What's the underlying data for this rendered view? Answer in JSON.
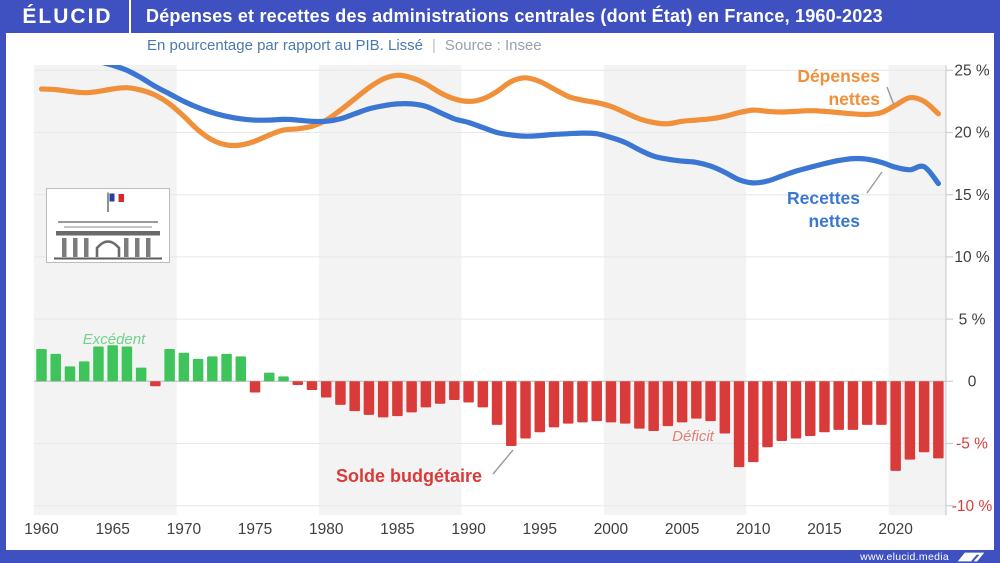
{
  "header": {
    "logo": "ÉLUCID",
    "title": "Dépenses et recettes des administrations centrales (dont État) en France, 1960-2023"
  },
  "subtitle": {
    "text": "En pourcentage par rapport au PIB. Lissé",
    "separator": "|",
    "source": "Source : Insee"
  },
  "footer": {
    "url": "www.elucid.media"
  },
  "colors": {
    "frame_blue": "#3F51C1",
    "depenses_orange": "#F0903A",
    "recettes_blue": "#3B76D3",
    "excedent_green": "#3FC45B",
    "deficit_red": "#D93B3B",
    "axis_text": "#3C4043",
    "negative_tick_text": "#D93B3B",
    "stripe_gray": "#F3F3F3",
    "excedent_label": "#72D28C",
    "deficit_label": "#DF8078"
  },
  "chart_data": {
    "type": "combo",
    "title": "Dépenses et recettes des administrations centrales (dont État) en France, 1960-2023",
    "subtitle": "En pourcentage par rapport au PIB. Lissé",
    "source": "Source : Insee",
    "unit": "% du PIB",
    "xlabel": "",
    "ylabel": "",
    "ylim": [
      -10.7,
      25.4
    ],
    "grid": "horizontal",
    "background_stripes": "alternating decades",
    "legend_position": "annotated-on-chart",
    "x": [
      1960,
      1961,
      1962,
      1963,
      1964,
      1965,
      1966,
      1967,
      1968,
      1969,
      1970,
      1971,
      1972,
      1973,
      1974,
      1975,
      1976,
      1977,
      1978,
      1979,
      1980,
      1981,
      1982,
      1983,
      1984,
      1985,
      1986,
      1987,
      1988,
      1989,
      1990,
      1991,
      1992,
      1993,
      1994,
      1995,
      1996,
      1997,
      1998,
      1999,
      2000,
      2001,
      2002,
      2003,
      2004,
      2005,
      2006,
      2007,
      2008,
      2009,
      2010,
      2011,
      2012,
      2013,
      2014,
      2015,
      2016,
      2017,
      2018,
      2019,
      2020,
      2021,
      2022,
      2023
    ],
    "series": [
      {
        "name": "Dépenses nettes",
        "type": "line",
        "color": "#F0903A",
        "values": [
          23.5,
          23.45,
          23.3,
          23.2,
          23.3,
          23.5,
          23.6,
          23.4,
          23.0,
          22.3,
          21.3,
          20.2,
          19.4,
          19.0,
          19.0,
          19.3,
          19.8,
          20.2,
          20.3,
          20.5,
          21.0,
          21.8,
          22.7,
          23.6,
          24.3,
          24.6,
          24.4,
          23.9,
          23.2,
          22.7,
          22.5,
          22.7,
          23.3,
          24.1,
          24.4,
          24.1,
          23.5,
          22.9,
          22.6,
          22.4,
          22.1,
          21.6,
          21.1,
          20.8,
          20.7,
          20.9,
          21.0,
          21.1,
          21.3,
          21.6,
          21.8,
          21.7,
          21.65,
          21.7,
          21.75,
          21.7,
          21.6,
          21.5,
          21.45,
          21.6,
          22.2,
          22.8,
          22.5,
          21.5
        ]
      },
      {
        "name": "Recettes nettes",
        "type": "line",
        "color": "#3B76D3",
        "values": [
          26.6,
          26.4,
          26.1,
          25.9,
          25.7,
          25.4,
          25.0,
          24.4,
          23.7,
          23.1,
          22.5,
          22.0,
          21.6,
          21.3,
          21.1,
          21.0,
          21.0,
          21.05,
          21.0,
          20.9,
          20.9,
          21.1,
          21.5,
          21.9,
          22.15,
          22.3,
          22.3,
          22.1,
          21.6,
          21.1,
          20.8,
          20.4,
          20.0,
          19.8,
          19.7,
          19.75,
          19.85,
          19.9,
          19.95,
          19.9,
          19.6,
          19.2,
          18.6,
          18.1,
          17.85,
          17.7,
          17.6,
          17.3,
          16.8,
          16.2,
          15.95,
          16.1,
          16.5,
          16.9,
          17.2,
          17.5,
          17.75,
          17.9,
          17.85,
          17.6,
          17.2,
          17.0,
          17.25,
          15.9
        ]
      },
      {
        "name": "Solde budgétaire",
        "type": "bar",
        "positive_color": "#3FC45B",
        "negative_color": "#D93B3B",
        "values": [
          2.6,
          2.2,
          1.2,
          1.6,
          2.8,
          2.9,
          2.8,
          1.1,
          -0.4,
          2.6,
          2.3,
          1.8,
          2.0,
          2.2,
          2.0,
          -0.9,
          0.7,
          0.4,
          -0.3,
          -0.7,
          -1.3,
          -1.9,
          -2.4,
          -2.7,
          -2.9,
          -2.8,
          -2.5,
          -2.1,
          -1.8,
          -1.5,
          -1.7,
          -2.1,
          -3.5,
          -5.2,
          -4.6,
          -4.1,
          -3.7,
          -3.4,
          -3.3,
          -3.2,
          -3.3,
          -3.4,
          -3.8,
          -4.0,
          -3.6,
          -3.3,
          -3.0,
          -3.2,
          -4.2,
          -6.9,
          -6.5,
          -5.3,
          -4.8,
          -4.6,
          -4.4,
          -4.1,
          -3.9,
          -3.9,
          -3.5,
          -3.5,
          -7.2,
          -6.3,
          -5.7,
          -6.2
        ]
      }
    ],
    "y_ticks": [
      {
        "value": 25,
        "label": "25 %"
      },
      {
        "value": 20,
        "label": "20 %"
      },
      {
        "value": 15,
        "label": "15 %"
      },
      {
        "value": 10,
        "label": "10 %"
      },
      {
        "value": 5,
        "label": "5 %"
      },
      {
        "value": 0,
        "label": "0"
      },
      {
        "value": -5,
        "label": "-5 %"
      },
      {
        "value": -10,
        "label": "-10 %"
      }
    ],
    "x_ticks": [
      {
        "value": 1960,
        "label": "1960"
      },
      {
        "value": 1965,
        "label": "1965"
      },
      {
        "value": 1970,
        "label": "1970"
      },
      {
        "value": 1975,
        "label": "1975"
      },
      {
        "value": 1980,
        "label": "1980"
      },
      {
        "value": 1985,
        "label": "1985"
      },
      {
        "value": 1990,
        "label": "1990"
      },
      {
        "value": 1995,
        "label": "1995"
      },
      {
        "value": 2000,
        "label": "2000"
      },
      {
        "value": 2005,
        "label": "2005"
      },
      {
        "value": 2010,
        "label": "2010"
      },
      {
        "value": 2015,
        "label": "2015"
      },
      {
        "value": 2020,
        "label": "2020"
      }
    ],
    "annotations": {
      "depenses_label": "Dépenses nettes",
      "recettes_label": "Recettes nettes",
      "solde_label": "Solde budgétaire",
      "excedent_label": "Excédent",
      "deficit_label": "Déficit"
    }
  }
}
